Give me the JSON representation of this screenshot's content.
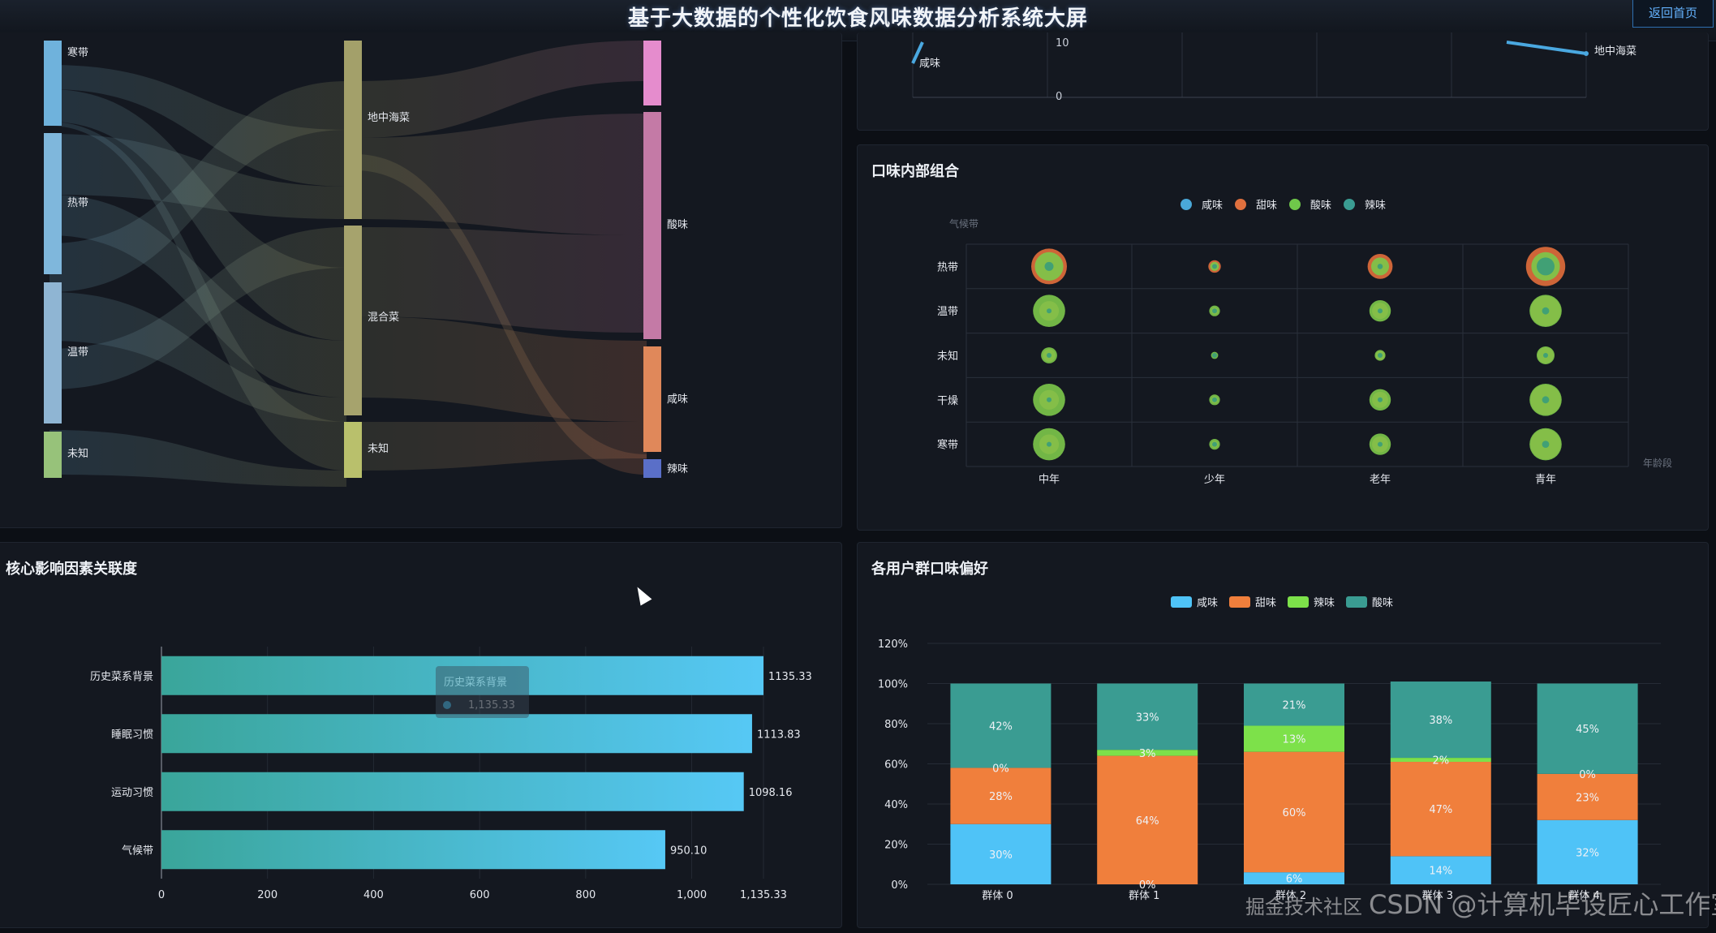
{
  "header": {
    "title": "基于大数据的个性化饮食风味数据分析系统大屏",
    "home_button": "返回首页"
  },
  "colors": {
    "salty": "#4fc3f7",
    "sweet": "#f07f3c",
    "spicy": "#7de14a",
    "sour": "#3a9c92",
    "bar_start": "#3aa59a",
    "bar_end": "#56c8f5"
  },
  "sankey": {
    "climate_nodes": [
      "寒带",
      "热带",
      "温带",
      "未知"
    ],
    "cuisine_nodes": [
      "地中海菜",
      "混合菜",
      "未知"
    ],
    "taste_nodes": [
      "酸味",
      "咸味",
      "辣味"
    ]
  },
  "top_line_chart": {
    "y_ticks": [
      "10",
      "0"
    ],
    "labels": [
      "咸味",
      "地中海菜"
    ]
  },
  "bubble_panel": {
    "title": "口味内部组合",
    "legend": [
      "咸味",
      "甜味",
      "酸味",
      "辣味"
    ],
    "y_axis_name": "气候带",
    "x_axis_name": "年龄段"
  },
  "bar_panel": {
    "title": "核心影响因素关联度",
    "tooltip": {
      "label": "历史菜系背景",
      "value": "1,135.33"
    },
    "x_ticks": [
      "0",
      "200",
      "400",
      "600",
      "800",
      "1,000",
      "1,135.33"
    ]
  },
  "stack_panel": {
    "title": "各用户群口味偏好",
    "legend": [
      "咸味",
      "甜味",
      "辣味",
      "酸味"
    ],
    "y_ticks": [
      "120%",
      "100%",
      "80%",
      "60%",
      "40%",
      "20%",
      "0%"
    ]
  },
  "chart_data": [
    {
      "type": "bubble",
      "title": "口味内部组合",
      "x_categories": [
        "中年",
        "少年",
        "老年",
        "青年"
      ],
      "y_categories": [
        "热带",
        "温带",
        "未知",
        "干燥",
        "寒带"
      ],
      "series": [
        {
          "name": "甜味",
          "values": [
            [
              1.0,
              0.35,
              0.7,
              1.1
            ],
            [
              0.55,
              0.2,
              0.45,
              0.85
            ],
            [
              0.35,
              0.12,
              0.25,
              0.45
            ],
            [
              0.55,
              0.2,
              0.45,
              0.85
            ],
            [
              0.55,
              0.2,
              0.45,
              0.85
            ]
          ]
        },
        {
          "name": "酸味",
          "values": [
            [
              0.8,
              0.25,
              0.5,
              0.8
            ],
            [
              0.9,
              0.3,
              0.6,
              0.9
            ],
            [
              0.45,
              0.2,
              0.3,
              0.5
            ],
            [
              0.9,
              0.3,
              0.6,
              0.9
            ],
            [
              0.9,
              0.3,
              0.6,
              0.9
            ]
          ]
        },
        {
          "name": "辣味",
          "values": [
            [
              0.25,
              0.1,
              0.15,
              0.5
            ],
            [
              0.1,
              0.05,
              0.1,
              0.2
            ],
            [
              0.05,
              0.03,
              0.05,
              0.1
            ],
            [
              0.1,
              0.05,
              0.1,
              0.2
            ],
            [
              0.1,
              0.05,
              0.1,
              0.2
            ]
          ]
        }
      ]
    },
    {
      "type": "bar",
      "orientation": "horizontal",
      "title": "核心影响因素关联度",
      "categories": [
        "历史菜系背景",
        "睡眠习惯",
        "运动习惯",
        "气候带"
      ],
      "values": [
        1135.33,
        1113.83,
        1098.16,
        950.1
      ],
      "value_labels": [
        "1135.33",
        "1113.83",
        "1098.16",
        "950.10"
      ],
      "xlim": [
        0,
        1135.33
      ]
    },
    {
      "type": "bar",
      "stacked": true,
      "title": "各用户群口味偏好",
      "categories": [
        "群体 0",
        "群体 1",
        "群体 2",
        "群体 3",
        "群体 4"
      ],
      "ylim": [
        0,
        120
      ],
      "series": [
        {
          "name": "咸味",
          "values": [
            30,
            0,
            6,
            14,
            32
          ],
          "labels": [
            "30%",
            "0%",
            "6%",
            "14%",
            "32%"
          ]
        },
        {
          "name": "甜味",
          "values": [
            28,
            64,
            60,
            47,
            23
          ],
          "labels": [
            "28%",
            "64%",
            "60%",
            "47%",
            "23%"
          ]
        },
        {
          "name": "辣味",
          "values": [
            0,
            3,
            13,
            2,
            0
          ],
          "labels": [
            "0%",
            "3%",
            "13%",
            "2%",
            "0%"
          ]
        },
        {
          "name": "酸味",
          "values": [
            42,
            33,
            21,
            38,
            45
          ],
          "labels": [
            "42%",
            "33%",
            "21%",
            "38%",
            "45%"
          ]
        }
      ]
    }
  ],
  "watermark": "CSDN @计算机毕设匠心工作室",
  "watermark_small": "掘金技术社区"
}
